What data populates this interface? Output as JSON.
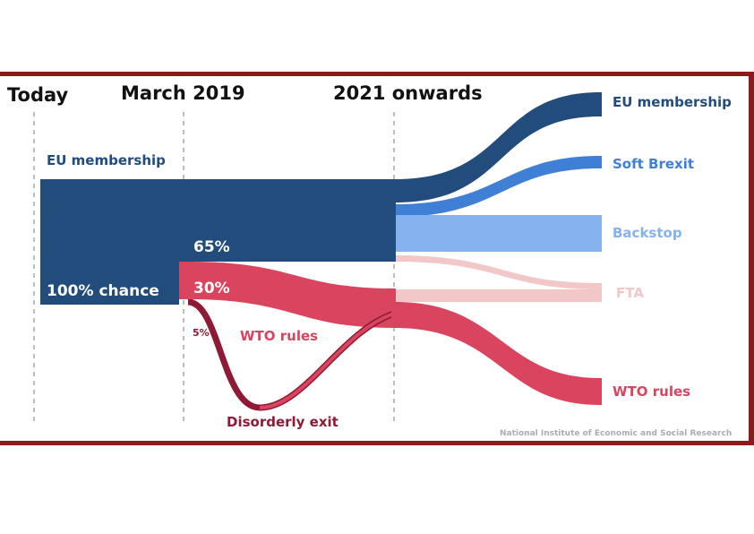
{
  "headers": {
    "today": "Today",
    "march": "March 2019",
    "onwards": "2021 onwards"
  },
  "start": {
    "label": "EU membership",
    "value": "100% chance"
  },
  "middle": {
    "stay_pct": "65%",
    "orderly_pct": "30%",
    "disorderly_pct": "5%",
    "wto_label": "WTO rules",
    "disorderly_label": "Disorderly exit"
  },
  "outcomes": [
    {
      "label": "EU membership",
      "color": "#224c7c"
    },
    {
      "label": "Soft Brexit",
      "color": "#3f7fd6"
    },
    {
      "label": "Backstop",
      "color": "#84b3ee"
    },
    {
      "label": "FTA",
      "color": "#f2c7c8"
    },
    {
      "label": "WTO rules",
      "color": "#d9445e"
    }
  ],
  "colors": {
    "frame": "#8c1b1b",
    "navy": "#224c7c",
    "red": "#d9445e",
    "dark_red": "#8e1a36",
    "divider": "#b8bcc4"
  },
  "source": "National Institute of Economic and Social Research"
}
